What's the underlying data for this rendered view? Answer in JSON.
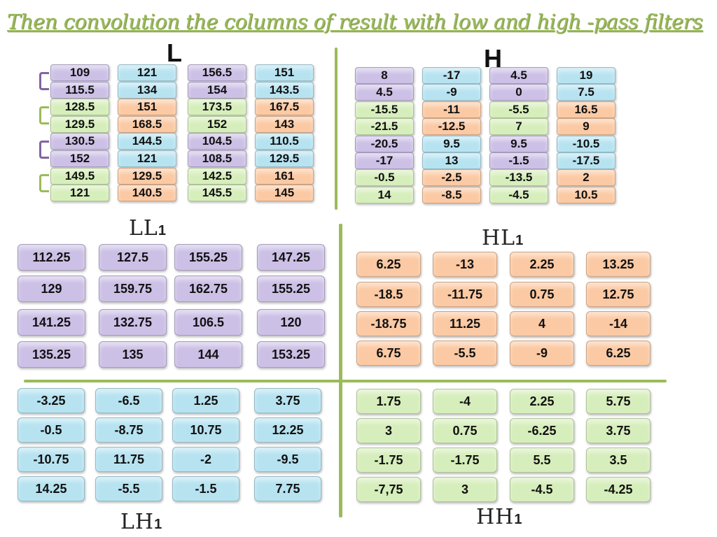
{
  "title": "Then convolution the columns of result with low and high -pass filters",
  "labels": {
    "L": "L",
    "H": "H",
    "LL1": "LL",
    "HL1": "HL",
    "LH1": "LH",
    "HH1": "HH",
    "subscript": "1"
  },
  "colors": {
    "purple": "#ccc0e6",
    "blue": "#b7e3f1",
    "green": "#d6eebb",
    "orange": "#fbc9a3",
    "divider": "#9bbb59",
    "title": "#9bbb59"
  },
  "L_matrix": [
    {
      "values": [
        "109",
        "115.5",
        "128.5",
        "129.5",
        "130.5",
        "152",
        "149.5",
        "121"
      ],
      "colors": [
        "purple",
        "purple",
        "green",
        "green",
        "purple",
        "purple",
        "green",
        "green"
      ]
    },
    {
      "values": [
        "121",
        "134",
        "151",
        "168.5",
        "144.5",
        "121",
        "129.5",
        "140.5"
      ],
      "colors": [
        "blue",
        "blue",
        "orange",
        "orange",
        "blue",
        "blue",
        "orange",
        "orange"
      ]
    },
    {
      "values": [
        "156.5",
        "154",
        "173.5",
        "152",
        "104.5",
        "108.5",
        "142.5",
        "145.5"
      ],
      "colors": [
        "purple",
        "purple",
        "green",
        "green",
        "purple",
        "purple",
        "green",
        "green"
      ]
    },
    {
      "values": [
        "151",
        "143.5",
        "167.5",
        "143",
        "110.5",
        "129.5",
        "161",
        "145"
      ],
      "colors": [
        "blue",
        "blue",
        "orange",
        "orange",
        "blue",
        "blue",
        "orange",
        "orange"
      ]
    }
  ],
  "H_matrix": [
    {
      "values": [
        "8",
        "4.5",
        "-15.5",
        "-21.5",
        "-20.5",
        "-17",
        "-0.5",
        "14"
      ],
      "colors": [
        "purple",
        "purple",
        "green",
        "green",
        "purple",
        "purple",
        "green",
        "green"
      ]
    },
    {
      "values": [
        "-17",
        "-9",
        "-11",
        "-12.5",
        "9.5",
        "13",
        "-2.5",
        "-8.5"
      ],
      "colors": [
        "blue",
        "blue",
        "orange",
        "orange",
        "blue",
        "blue",
        "orange",
        "orange"
      ]
    },
    {
      "values": [
        "4.5",
        "0",
        "-5.5",
        "7",
        "9.5",
        "-1.5",
        "-13.5",
        "-4.5"
      ],
      "colors": [
        "purple",
        "purple",
        "green",
        "green",
        "purple",
        "purple",
        "green",
        "green"
      ]
    },
    {
      "values": [
        "19",
        "7.5",
        "16.5",
        "9",
        "-10.5",
        "-17.5",
        "2",
        "10.5"
      ],
      "colors": [
        "blue",
        "blue",
        "orange",
        "orange",
        "blue",
        "blue",
        "orange",
        "orange"
      ]
    }
  ],
  "LL1": [
    [
      "112.25",
      "127.5",
      "155.25",
      "147.25"
    ],
    [
      "129",
      "159.75",
      "162.75",
      "155.25"
    ],
    [
      "141.25",
      "132.75",
      "106.5",
      "120"
    ],
    [
      "135.25",
      "135",
      "144",
      "153.25"
    ]
  ],
  "HL1": [
    [
      "6.25",
      "-13",
      "2.25",
      "13.25"
    ],
    [
      "-18.5",
      "-11.75",
      "0.75",
      "12.75"
    ],
    [
      "-18.75",
      "11.25",
      "4",
      "-14"
    ],
    [
      "6.75",
      "-5.5",
      "-9",
      "6.25"
    ]
  ],
  "LH1": [
    [
      "-3.25",
      "-6.5",
      "1.25",
      "3.75"
    ],
    [
      "-0.5",
      "-8.75",
      "10.75",
      "12.25"
    ],
    [
      "-10.75",
      "11.75",
      "-2",
      "-9.5"
    ],
    [
      "14.25",
      "-5.5",
      "-1.5",
      "7.75"
    ]
  ],
  "HH1": [
    [
      "1.75",
      "-4",
      "2.25",
      "5.75"
    ],
    [
      "3",
      "0.75",
      "-6.25",
      "3.75"
    ],
    [
      "-1.75",
      "-1.75",
      "5.5",
      "3.5"
    ],
    [
      "-7,75",
      "3",
      "-4.5",
      "-4.25"
    ]
  ]
}
